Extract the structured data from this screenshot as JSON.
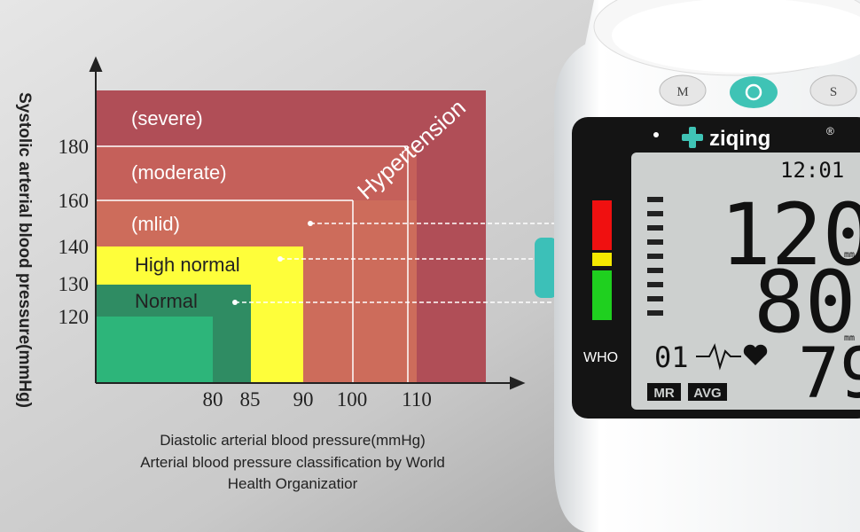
{
  "chart": {
    "y_axis_label": "Systolic arterial blood pressure(mmHg)",
    "y_ticks": [
      180,
      160,
      140,
      130,
      120
    ],
    "x_ticks": [
      80,
      85,
      90,
      100,
      110
    ],
    "zones": [
      "(severe)",
      "(moderate)",
      "(mlid)",
      "High normal",
      "Normal"
    ],
    "banner": "Hypertension",
    "caption": [
      "Diastolic arterial blood pressure(mmHg)",
      "Arterial blood pressure classification by World",
      "Health Organizatior"
    ]
  },
  "device": {
    "buttons": [
      "M",
      "S"
    ],
    "brand": "ziqing",
    "registered": "®",
    "time": "12:01",
    "systolic": "120",
    "diastolic": "80",
    "pulse": "79",
    "unit": [
      "mm",
      "mm"
    ],
    "who": "WHO",
    "memory": "01",
    "badges": [
      "MR",
      "AVG"
    ]
  }
}
